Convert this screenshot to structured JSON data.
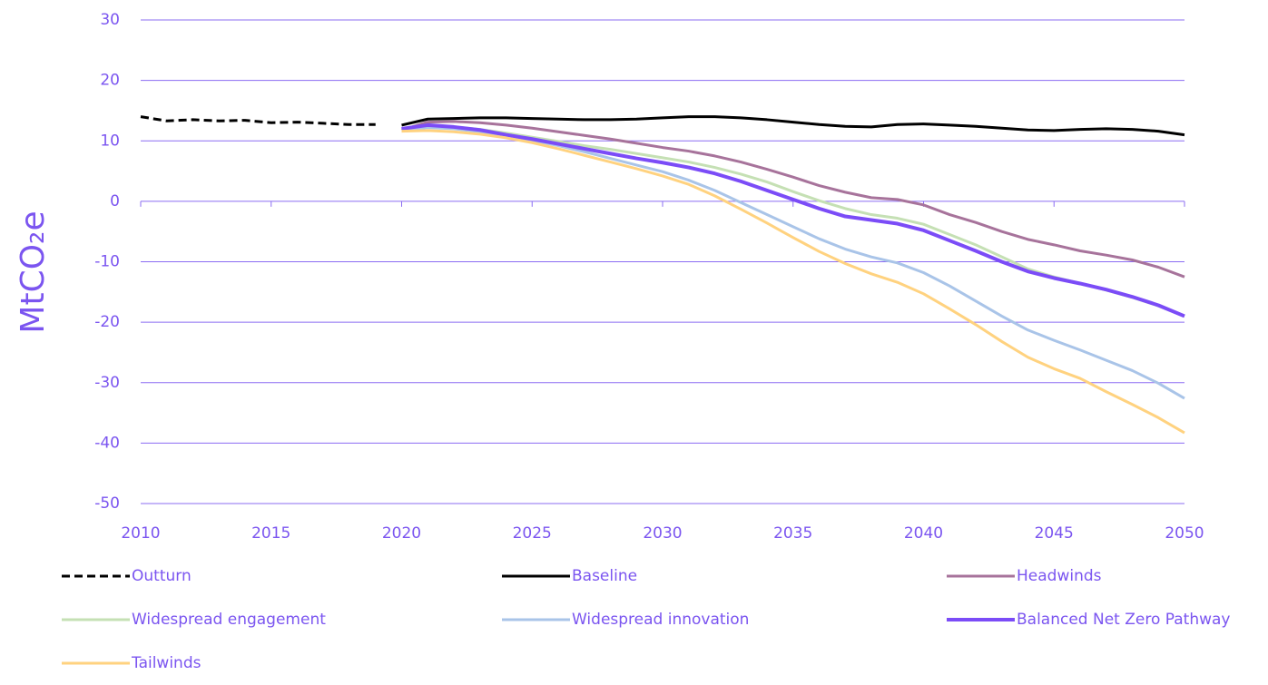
{
  "chart_data": {
    "type": "line",
    "y_label": "MtCO₂e",
    "x": [
      2010,
      2011,
      2012,
      2013,
      2014,
      2015,
      2016,
      2017,
      2018,
      2019,
      2020,
      2021,
      2022,
      2023,
      2024,
      2025,
      2026,
      2027,
      2028,
      2029,
      2030,
      2031,
      2032,
      2033,
      2034,
      2035,
      2036,
      2037,
      2038,
      2039,
      2040,
      2041,
      2042,
      2043,
      2044,
      2045,
      2046,
      2047,
      2048,
      2049,
      2050
    ],
    "xlim": [
      2010,
      2050
    ],
    "xticks": [
      2010,
      2015,
      2020,
      2025,
      2030,
      2035,
      2040,
      2045,
      2050
    ],
    "ylim": [
      -50,
      30
    ],
    "yticks": [
      -50,
      -40,
      -30,
      -20,
      -10,
      0,
      10,
      20,
      30
    ],
    "grid": true,
    "legend": "bottom",
    "series": [
      {
        "name": "Outturn",
        "color": "#000000",
        "dashed": true,
        "values": [
          14.0,
          13.3,
          13.5,
          13.3,
          13.4,
          13.0,
          13.1,
          12.9,
          12.7,
          12.7,
          null,
          null,
          null,
          null,
          null,
          null,
          null,
          null,
          null,
          null,
          null,
          null,
          null,
          null,
          null,
          null,
          null,
          null,
          null,
          null,
          null,
          null,
          null,
          null,
          null,
          null,
          null,
          null,
          null,
          null,
          null
        ]
      },
      {
        "name": "Baseline",
        "color": "#000000",
        "values": [
          null,
          null,
          null,
          null,
          null,
          null,
          null,
          null,
          null,
          null,
          12.6,
          13.6,
          13.7,
          13.8,
          13.8,
          13.7,
          13.6,
          13.5,
          13.5,
          13.6,
          13.8,
          14.0,
          14.0,
          13.8,
          13.5,
          13.1,
          12.7,
          12.4,
          12.3,
          12.7,
          12.8,
          12.6,
          12.4,
          12.1,
          11.8,
          11.7,
          11.9,
          12.0,
          11.9,
          11.6,
          11.0
        ]
      },
      {
        "name": "Headwinds",
        "color": "#a7739b",
        "values": [
          null,
          null,
          null,
          null,
          null,
          null,
          null,
          null,
          null,
          null,
          11.8,
          13.1,
          13.2,
          13.0,
          12.6,
          12.1,
          11.5,
          10.9,
          10.3,
          9.6,
          8.9,
          8.3,
          7.5,
          6.5,
          5.3,
          4.0,
          2.6,
          1.5,
          0.6,
          0.3,
          -0.6,
          -2.2,
          -3.5,
          -5.0,
          -6.3,
          -7.2,
          -8.2,
          -8.9,
          -9.7,
          -10.9,
          -12.5
        ]
      },
      {
        "name": "Widespread engagement",
        "color": "#c5e0b4",
        "values": [
          null,
          null,
          null,
          null,
          null,
          null,
          null,
          null,
          null,
          null,
          12.0,
          12.5,
          12.3,
          11.9,
          11.3,
          10.6,
          9.9,
          9.2,
          8.6,
          7.9,
          7.2,
          6.5,
          5.6,
          4.5,
          3.2,
          1.6,
          0.1,
          -1.2,
          -2.2,
          -2.8,
          -3.8,
          -5.5,
          -7.2,
          -9.2,
          -11.2,
          -12.5,
          -13.6,
          -14.7,
          -15.9,
          -17.3,
          -19.0
        ]
      },
      {
        "name": "Widespread innovation",
        "color": "#a9c4e8",
        "values": [
          null,
          null,
          null,
          null,
          null,
          null,
          null,
          null,
          null,
          null,
          11.8,
          12.2,
          12.0,
          11.5,
          10.9,
          10.1,
          9.2,
          8.2,
          7.1,
          6.0,
          4.9,
          3.5,
          1.8,
          -0.2,
          -2.2,
          -4.2,
          -6.2,
          -7.9,
          -9.2,
          -10.2,
          -11.8,
          -14.0,
          -16.5,
          -19.0,
          -21.3,
          -23.0,
          -24.6,
          -26.3,
          -28.0,
          -30.1,
          -32.6
        ]
      },
      {
        "name": "Balanced Net Zero Pathway",
        "color": "#7b4cf7",
        "values": [
          null,
          null,
          null,
          null,
          null,
          null,
          null,
          null,
          null,
          null,
          12.0,
          12.6,
          12.3,
          11.8,
          11.0,
          10.3,
          9.5,
          8.7,
          7.9,
          7.1,
          6.4,
          5.6,
          4.6,
          3.3,
          1.8,
          0.3,
          -1.2,
          -2.5,
          -3.1,
          -3.7,
          -4.8,
          -6.5,
          -8.2,
          -10.0,
          -11.6,
          -12.7,
          -13.6,
          -14.6,
          -15.8,
          -17.2,
          -19.0
        ]
      },
      {
        "name": "Tailwinds",
        "color": "#ffd27f",
        "values": [
          null,
          null,
          null,
          null,
          null,
          null,
          null,
          null,
          null,
          null,
          11.6,
          11.7,
          11.5,
          11.1,
          10.5,
          9.7,
          8.7,
          7.6,
          6.5,
          5.4,
          4.2,
          2.8,
          0.9,
          -1.3,
          -3.6,
          -6.0,
          -8.3,
          -10.3,
          -12.0,
          -13.4,
          -15.3,
          -17.8,
          -20.4,
          -23.2,
          -25.8,
          -27.7,
          -29.3,
          -31.5,
          -33.6,
          -35.8,
          -38.3
        ]
      }
    ]
  }
}
